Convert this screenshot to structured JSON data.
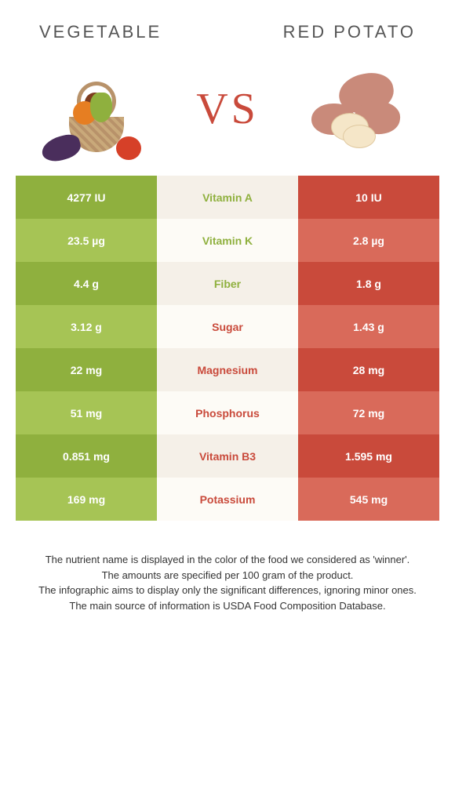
{
  "header": {
    "left_title": "Vegetable",
    "right_title": "Red potato"
  },
  "vs_label": "VS",
  "colors": {
    "left_dark": "#8fb03e",
    "left_light": "#a6c455",
    "mid_dark": "#f5f0e8",
    "mid_light": "#fdfbf6",
    "right_dark": "#c94a3b",
    "right_light": "#d96a5a",
    "winner_left": "#8fb03e",
    "winner_right": "#c94a3b"
  },
  "rows": [
    {
      "nutrient": "Vitamin A",
      "left": "4277 IU",
      "right": "10 IU",
      "winner": "left"
    },
    {
      "nutrient": "Vitamin K",
      "left": "23.5 µg",
      "right": "2.8 µg",
      "winner": "left"
    },
    {
      "nutrient": "Fiber",
      "left": "4.4 g",
      "right": "1.8 g",
      "winner": "left"
    },
    {
      "nutrient": "Sugar",
      "left": "3.12 g",
      "right": "1.43 g",
      "winner": "right"
    },
    {
      "nutrient": "Magnesium",
      "left": "22 mg",
      "right": "28 mg",
      "winner": "right"
    },
    {
      "nutrient": "Phosphorus",
      "left": "51 mg",
      "right": "72 mg",
      "winner": "right"
    },
    {
      "nutrient": "Vitamin B3",
      "left": "0.851 mg",
      "right": "1.595 mg",
      "winner": "right"
    },
    {
      "nutrient": "Potassium",
      "left": "169 mg",
      "right": "545 mg",
      "winner": "right"
    }
  ],
  "footer": {
    "line1": "The nutrient name is displayed in the color of the food we considered as 'winner'.",
    "line2": "The amounts are specified per 100 gram of the product.",
    "line3": "The infographic aims to display only the significant differences, ignoring minor ones.",
    "line4": "The main source of information is USDA Food Composition Database."
  }
}
